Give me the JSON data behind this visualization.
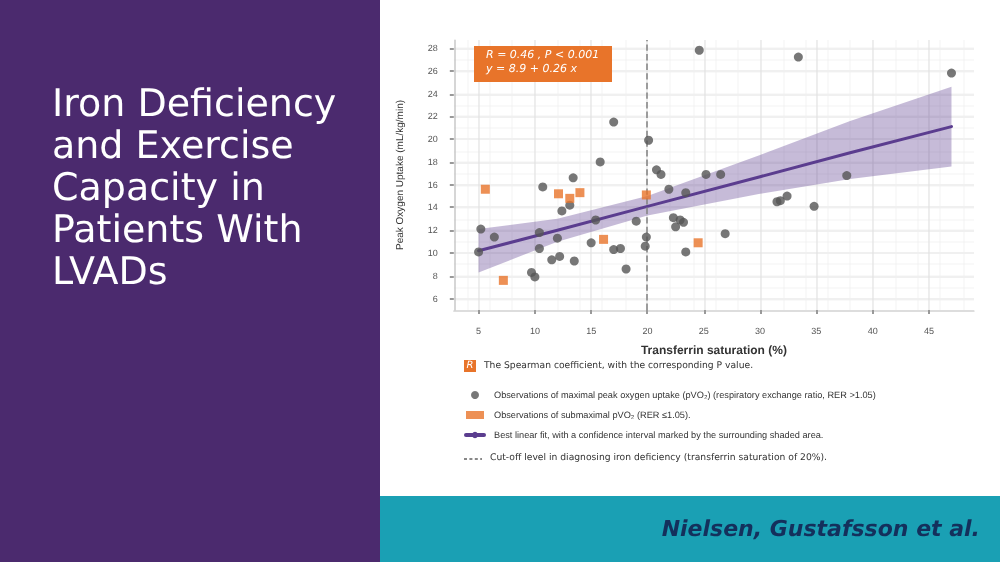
{
  "chart_data": {
    "type": "scatter",
    "title": "Iron Deficiency and Exercise Capacity in Patients With LVADs",
    "xlabel": "Transferrin saturation (%)",
    "ylabel": "Peak Oxygen Uptake (mL/kg/min)",
    "xlim": [
      2.8,
      49
    ],
    "xticks": [
      5,
      10,
      15,
      20,
      25,
      30,
      35,
      40,
      45
    ],
    "ylim": [
      5,
      28.7
    ],
    "yticks": [
      6,
      8,
      10,
      12,
      14,
      16,
      18,
      20,
      22,
      24,
      26,
      28
    ],
    "grid": true,
    "legend": "bottom",
    "series": [
      {
        "name": "Observations of maximal peak oxygen uptake (pVO₂) (respiratory exchange ratio, RER >1.05)",
        "marker": "circle",
        "color": "#555555",
        "x": [
          5.0,
          5.2,
          6.4,
          9.7,
          10.0,
          10.4,
          10.4,
          10.7,
          11.5,
          12.0,
          12.2,
          12.4,
          13.1,
          13.4,
          13.5,
          15.0,
          15.4,
          15.8,
          17.0,
          17.0,
          17.6,
          18.1,
          19.0,
          19.8,
          19.9,
          20.1,
          20.8,
          21.2,
          21.9,
          22.3,
          22.5,
          22.9,
          23.2,
          23.4,
          23.4,
          24.6,
          25.2,
          26.5,
          26.9,
          31.5,
          31.8,
          32.4,
          33.4,
          34.8,
          37.7,
          47.0
        ],
        "values": [
          10.1,
          12.1,
          11.4,
          8.3,
          7.9,
          11.8,
          10.4,
          15.8,
          9.4,
          11.3,
          9.7,
          13.7,
          14.2,
          16.6,
          9.3,
          10.9,
          12.9,
          18.0,
          21.5,
          10.3,
          10.4,
          8.6,
          12.8,
          10.6,
          11.4,
          19.9,
          17.3,
          16.9,
          15.6,
          13.1,
          12.3,
          12.9,
          12.7,
          15.3,
          10.1,
          27.8,
          16.9,
          16.9,
          11.7,
          14.5,
          14.6,
          15.0,
          27.2,
          14.1,
          16.8,
          25.8
        ]
      },
      {
        "name": "Observations of submaximal pVO₂ (RER ≤1.05).",
        "marker": "square",
        "color": "#e8742a",
        "x": [
          5.6,
          7.2,
          12.1,
          13.1,
          14.0,
          16.1,
          19.9,
          24.5
        ],
        "values": [
          15.6,
          7.6,
          15.2,
          14.8,
          15.3,
          11.2,
          15.1,
          10.9
        ]
      },
      {
        "name": "Best linear fit, with a confidence interval marked by the surrounding shaded area.",
        "type": "line",
        "marker": "none",
        "line_style": "solid",
        "color": "#5b3d8f",
        "x": [
          5,
          12,
          20,
          30,
          38,
          47
        ],
        "values": [
          10.2,
          12.0,
          14.1,
          16.7,
          18.8,
          21.1
        ],
        "lower": [
          8.3,
          11.0,
          13.3,
          15.2,
          16.5,
          17.6
        ],
        "upper": [
          12.1,
          13.0,
          15.0,
          18.6,
          21.6,
          24.6
        ]
      }
    ],
    "ref_lines": [
      {
        "axis": "x",
        "value": 20,
        "label": "Cut-off level in diagnosing iron deficiency (transferrin saturation of 20%).",
        "color": "#888888",
        "line_style": "dashed"
      }
    ],
    "annotations": [
      "R = 0.46 , P < 0.001\ny = 8.9 + 0.26 x",
      "R",
      "The Spearman coefficient, with the corresponding P value.",
      "Nielsen, Gustafsson et al."
    ]
  }
}
